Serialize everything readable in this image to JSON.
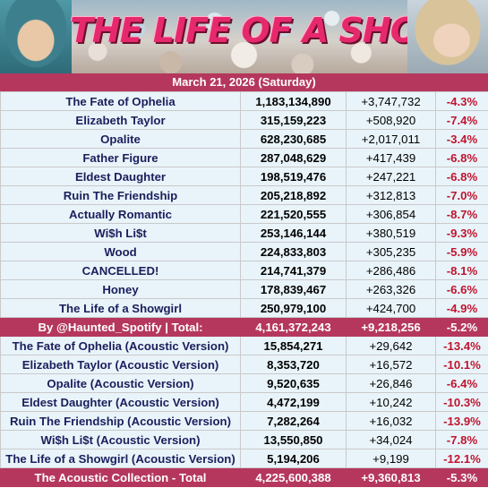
{
  "header": {
    "title": "THE LIFE OF A SHOWGIRL",
    "date": "March 21, 2026 (Saturday)"
  },
  "album": {
    "tracks": [
      {
        "name": "The Fate of Ophelia",
        "streams": "1,183,134,890",
        "gain": "+3,747,732",
        "pct": "-4.3%"
      },
      {
        "name": "Elizabeth Taylor",
        "streams": "315,159,223",
        "gain": "+508,920",
        "pct": "-7.4%"
      },
      {
        "name": "Opalite",
        "streams": "628,230,685",
        "gain": "+2,017,011",
        "pct": "-3.4%"
      },
      {
        "name": "Father Figure",
        "streams": "287,048,629",
        "gain": "+417,439",
        "pct": "-6.8%"
      },
      {
        "name": "Eldest Daughter",
        "streams": "198,519,476",
        "gain": "+247,221",
        "pct": "-6.8%"
      },
      {
        "name": "Ruin The Friendship",
        "streams": "205,218,892",
        "gain": "+312,813",
        "pct": "-7.0%"
      },
      {
        "name": "Actually Romantic",
        "streams": "221,520,555",
        "gain": "+306,854",
        "pct": "-8.7%"
      },
      {
        "name": "Wi$h Li$t",
        "streams": "253,146,144",
        "gain": "+380,519",
        "pct": "-9.3%"
      },
      {
        "name": "Wood",
        "streams": "224,833,803",
        "gain": "+305,235",
        "pct": "-5.9%"
      },
      {
        "name": "CANCELLED!",
        "streams": "214,741,379",
        "gain": "+286,486",
        "pct": "-8.1%"
      },
      {
        "name": "Honey",
        "streams": "178,839,467",
        "gain": "+263,326",
        "pct": "-6.6%"
      },
      {
        "name": "The Life of a Showgirl",
        "streams": "250,979,100",
        "gain": "+424,700",
        "pct": "-4.9%"
      }
    ],
    "total": {
      "name": "By @Haunted_Spotify | Total:",
      "streams": "4,161,372,243",
      "gain": "+9,218,256",
      "pct": "-5.2%"
    }
  },
  "acoustic": {
    "tracks": [
      {
        "name": "The Fate of Ophelia (Acoustic Version)",
        "streams": "15,854,271",
        "gain": "+29,642",
        "pct": "-13.4%"
      },
      {
        "name": "Elizabeth Taylor (Acoustic Version)",
        "streams": "8,353,720",
        "gain": "+16,572",
        "pct": "-10.1%"
      },
      {
        "name": "Opalite (Acoustic Version)",
        "streams": "9,520,635",
        "gain": "+26,846",
        "pct": "-6.4%"
      },
      {
        "name": "Eldest Daughter (Acoustic Version)",
        "streams": "4,472,199",
        "gain": "+10,242",
        "pct": "-10.3%"
      },
      {
        "name": "Ruin The Friendship (Acoustic Version)",
        "streams": "7,282,264",
        "gain": "+16,032",
        "pct": "-13.9%"
      },
      {
        "name": "Wi$h Li$t (Acoustic Version)",
        "streams": "13,550,850",
        "gain": "+34,024",
        "pct": "-7.8%"
      },
      {
        "name": "The Life of a Showgirl (Acoustic Version)",
        "streams": "5,194,206",
        "gain": "+9,199",
        "pct": "-12.1%"
      }
    ],
    "total": {
      "name": "The Acoustic Collection - Total",
      "streams": "4,225,600,388",
      "gain": "+9,360,813",
      "pct": "-5.3%"
    }
  }
}
